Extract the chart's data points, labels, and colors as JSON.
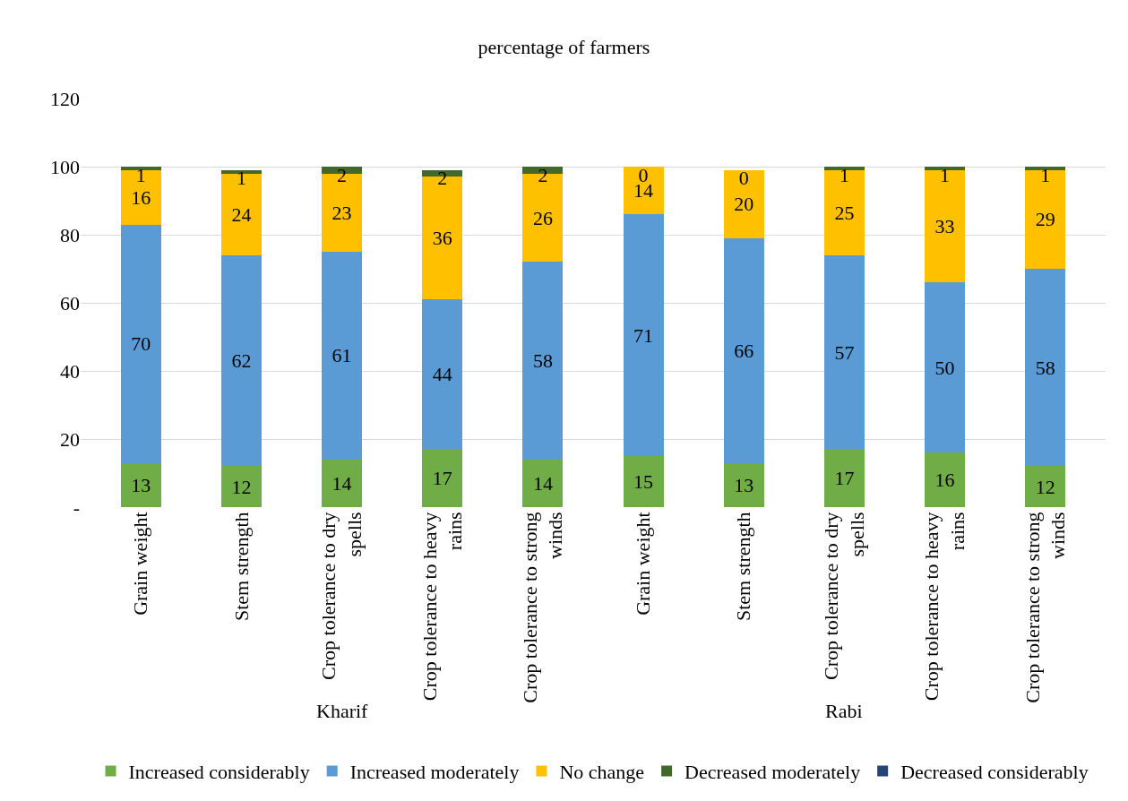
{
  "chart_data": {
    "type": "bar",
    "stacked": true,
    "title": "percentage of farmers",
    "categories": [
      "Grain weight",
      "Stem strength",
      "Crop tolerance to dry spells",
      "Crop tolerance to heavy rains",
      "Crop tolerance to strong winds",
      "Grain weight",
      "Stem strength",
      "Crop tolerance to dry spells",
      "Crop tolerance to heavy rains",
      "Crop tolerance to strong winds"
    ],
    "series": [
      {
        "name": "Increased considerably",
        "color": "#70ad47",
        "values": [
          13,
          12,
          14,
          17,
          14,
          15,
          13,
          17,
          16,
          12
        ],
        "value_labels": [
          "13",
          "12",
          "14",
          "17",
          "14",
          "15",
          "13",
          "17",
          "16",
          "12"
        ]
      },
      {
        "name": "Increased moderately",
        "color": "#5b9bd5",
        "values": [
          70,
          62,
          61,
          44,
          58,
          71,
          66,
          57,
          50,
          58
        ],
        "value_labels": [
          "70",
          "62",
          "61",
          "44",
          "58",
          "71",
          "66",
          "57",
          "50",
          "58"
        ]
      },
      {
        "name": "No change",
        "color": "#ffc000",
        "values": [
          16,
          24,
          23,
          36,
          26,
          14,
          20,
          25,
          33,
          29
        ],
        "value_labels": [
          "16",
          "24",
          "23",
          "36",
          "26",
          "14",
          "20",
          "25",
          "33",
          "29"
        ]
      },
      {
        "name": "Decreased moderately",
        "color": "#43682b",
        "values": [
          1,
          1,
          2,
          2,
          2,
          0,
          0,
          1,
          1,
          1
        ],
        "value_labels": [
          "1",
          "1",
          "2",
          "2",
          "2",
          "0",
          "0",
          "1",
          "1",
          "1"
        ]
      },
      {
        "name": "Decreased considerably",
        "color": "#264478",
        "values": [
          0,
          0,
          0,
          0,
          0,
          0,
          0,
          0,
          0,
          0
        ],
        "value_labels": [
          null,
          null,
          null,
          null,
          null,
          null,
          null,
          null,
          null,
          null
        ]
      }
    ],
    "annotations": [
      "Kharif",
      "Rabi"
    ],
    "ylim": [
      0,
      120
    ],
    "yticks": [
      {
        "value": 0,
        "label": "-"
      },
      20,
      40,
      60,
      80,
      100,
      120
    ],
    "grid": "y",
    "legend": "bottom"
  }
}
